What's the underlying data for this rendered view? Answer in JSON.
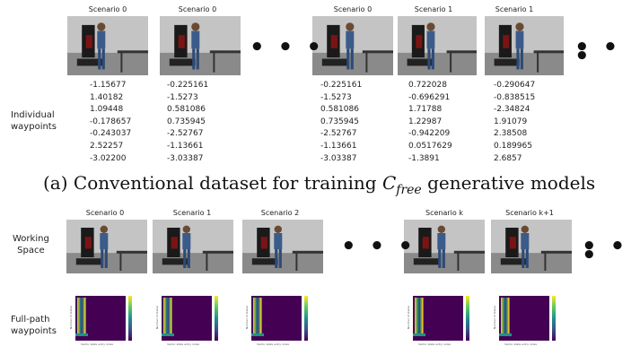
{
  "top": {
    "scenario_labels": [
      "Scenario 0",
      "Scenario 0",
      "Scenario 0",
      "Scenario 1",
      "Scenario 1"
    ],
    "row_label": "Individual\nwaypoints",
    "ellipsis": "• • •",
    "waypoints": [
      [
        "-1.15677",
        "1.40182",
        "1.09448",
        "-0.178657",
        "-0.243037",
        "2.52257",
        "-3.02200"
      ],
      [
        "-0.225161",
        "-1.5273",
        "0.581086",
        "0.735945",
        "-2.52767",
        "-1.13661",
        "-3.03387"
      ],
      [
        "-0.225161",
        "-1.5273",
        "0.581086",
        "0.735945",
        "-2.52767",
        "-1.13661",
        "-3.03387"
      ],
      [
        "0.722028",
        "-0.696291",
        "1.71788",
        "1.22987",
        "-0.942209",
        "0.0517629",
        "-1.3891"
      ],
      [
        "-0.290647",
        "-0.838515",
        "-2.34824",
        "1.91079",
        "2.38508",
        "0.189965",
        "2.6857"
      ]
    ]
  },
  "caption": {
    "prefix": "(a) Conventional dataset for training ",
    "symbol": "C",
    "subscript": "free",
    "suffix": " generative models"
  },
  "bottom": {
    "scenario_labels": [
      "Scenario 0",
      "Scenario 1",
      "Scenario 2",
      "Scenario k",
      "Scenario k+1"
    ],
    "working_space_label": "Working\nSpace",
    "full_path_label": "Full-path\nwaypoints",
    "ellipsis": "• • •",
    "heatmap_ylabel": "Number of states",
    "heatmap_xlabel": "Vector state entry index"
  },
  "colors": {
    "viridis_low": "#440154",
    "viridis_high": "#fde725",
    "floor": "#8a8a8a",
    "wall": "#c4c4c4"
  }
}
